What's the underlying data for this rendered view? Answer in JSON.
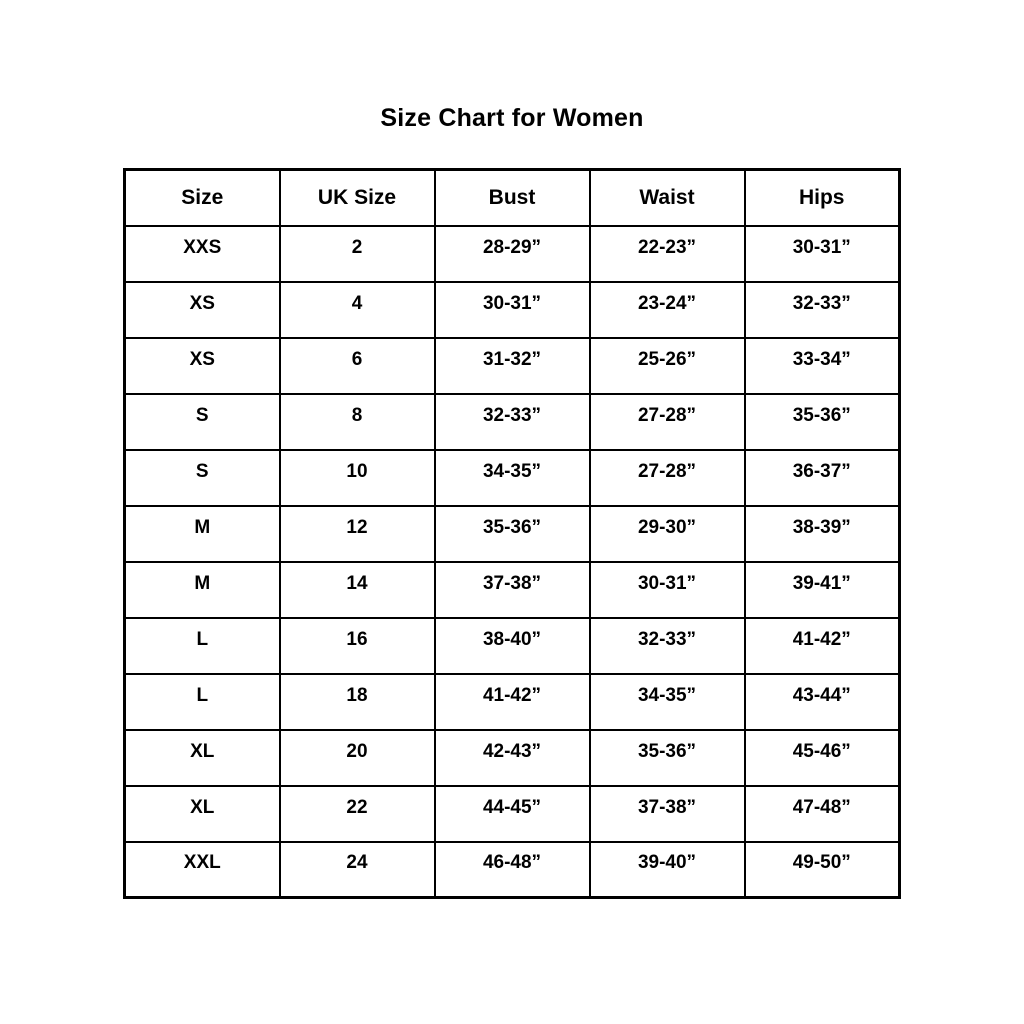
{
  "page": {
    "title": "Size Chart for Women"
  },
  "chart_data": {
    "type": "table",
    "title": "Size Chart for Women",
    "columns": [
      "Size",
      "UK Size",
      "Bust",
      "Waist",
      "Hips"
    ],
    "rows": [
      [
        "XXS",
        "2",
        "28-29”",
        "22-23”",
        "30-31”"
      ],
      [
        "XS",
        "4",
        "30-31”",
        "23-24”",
        "32-33”"
      ],
      [
        "XS",
        "6",
        "31-32”",
        "25-26”",
        "33-34”"
      ],
      [
        "S",
        "8",
        "32-33”",
        "27-28”",
        "35-36”"
      ],
      [
        "S",
        "10",
        "34-35”",
        "27-28”",
        "36-37”"
      ],
      [
        "M",
        "12",
        "35-36”",
        "29-30”",
        "38-39”"
      ],
      [
        "M",
        "14",
        "37-38”",
        "30-31”",
        "39-41”"
      ],
      [
        "L",
        "16",
        "38-40”",
        "32-33”",
        "41-42”"
      ],
      [
        "L",
        "18",
        "41-42”",
        "34-35”",
        "43-44”"
      ],
      [
        "XL",
        "20",
        "42-43”",
        "35-36”",
        "45-46”"
      ],
      [
        "XL",
        "22",
        "44-45”",
        "37-38”",
        "47-48”"
      ],
      [
        "XXL",
        "24",
        "46-48”",
        "39-40”",
        "49-50”"
      ]
    ],
    "layout": {
      "grid": true,
      "text_color": "#000000",
      "border_color": "#000000",
      "background_color": "#ffffff"
    }
  }
}
